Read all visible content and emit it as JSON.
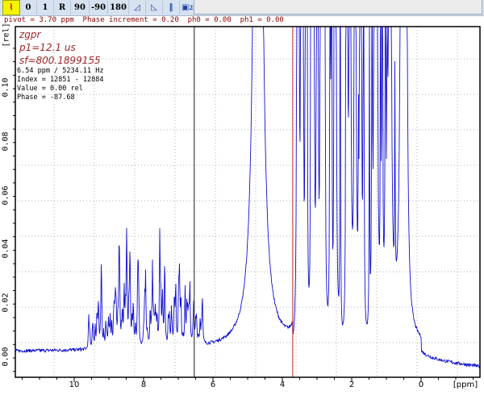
{
  "toolbar": {
    "buttons": [
      {
        "label": "",
        "icon": "phase-mode-icon",
        "active": true
      },
      {
        "label": "0"
      },
      {
        "label": "1"
      },
      {
        "label": "R"
      },
      {
        "label": "90"
      },
      {
        "label": "-90"
      },
      {
        "label": "180"
      },
      {
        "label": "",
        "icon": "ramp-up-icon"
      },
      {
        "label": "",
        "icon": "ramp-down-icon"
      },
      {
        "label": "",
        "icon": "pause-bars-icon"
      },
      {
        "label": "2D",
        "icon": "save-2d-icon"
      },
      {
        "label": "",
        "icon": "save-return-icon"
      },
      {
        "label": "",
        "icon": "return-arrow-icon"
      }
    ]
  },
  "status_line": "pivot = 3.70 ppm  Phase increment = 0.20  ph0 = 0.00  ph1 = 0.00",
  "spectrum": {
    "pulse_program": "zgpr",
    "p1": "p1=12.1 us",
    "sf": "sf=800.1899155",
    "cursor": {
      "position": "6.54 ppm / 5234.11 Hz",
      "index": "Index = 12851 - 12884",
      "value": "Value = 0.00 rel",
      "phase": "Phase = -87.68"
    },
    "colors": {
      "trace": "#1010d0",
      "pivot": "#d02020",
      "cursor": "#404040"
    }
  },
  "chart_data": {
    "type": "line",
    "xlabel": "[ppm]",
    "ylabel": "[rel]",
    "xlim": [
      11.7,
      -1.7
    ],
    "ylim": [
      -0.007,
      0.12
    ],
    "x_ticks": [
      "10",
      "8",
      "6",
      "4",
      "2",
      "0"
    ],
    "y_ticks": [
      "0.00",
      "0.02",
      "0.04",
      "0.06",
      "0.08",
      "0.10"
    ],
    "x_tick_values": [
      10,
      8,
      6,
      4,
      2,
      0
    ],
    "y_tick_values": [
      0,
      0.02,
      0.04,
      0.06,
      0.08,
      0.1
    ],
    "grid": true,
    "cursor_ppm": 6.54,
    "pivot_ppm": 3.7,
    "regions": [
      {
        "range_ppm": [
          9.5,
          6.3
        ],
        "max_height": 0.03,
        "description_level": "aromatic multiplets"
      },
      {
        "center_ppm": 4.7,
        "offscale": true
      },
      {
        "range_ppm": [
          3.7,
          0.7
        ],
        "offscale": true
      },
      {
        "center_ppm": 0.5,
        "offscale": true
      }
    ]
  }
}
